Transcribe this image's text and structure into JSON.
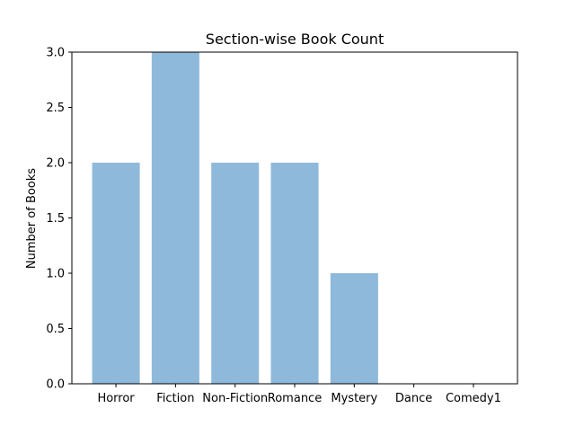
{
  "chart_data": {
    "type": "bar",
    "title": "Section-wise Book Count",
    "xlabel": "",
    "ylabel": "Number of Books",
    "categories": [
      "Horror",
      "Fiction",
      "Non-Fiction",
      "Romance",
      "Mystery",
      "Dance",
      "Comedy1"
    ],
    "values": [
      2,
      3,
      2,
      2,
      1,
      0,
      0
    ],
    "ylim": [
      0,
      3.0
    ],
    "yticks": [
      "0.0",
      "0.5",
      "1.0",
      "1.5",
      "2.0",
      "2.5",
      "3.0"
    ],
    "grid": false,
    "legend": "none",
    "bar_color": "#8fb9da"
  }
}
